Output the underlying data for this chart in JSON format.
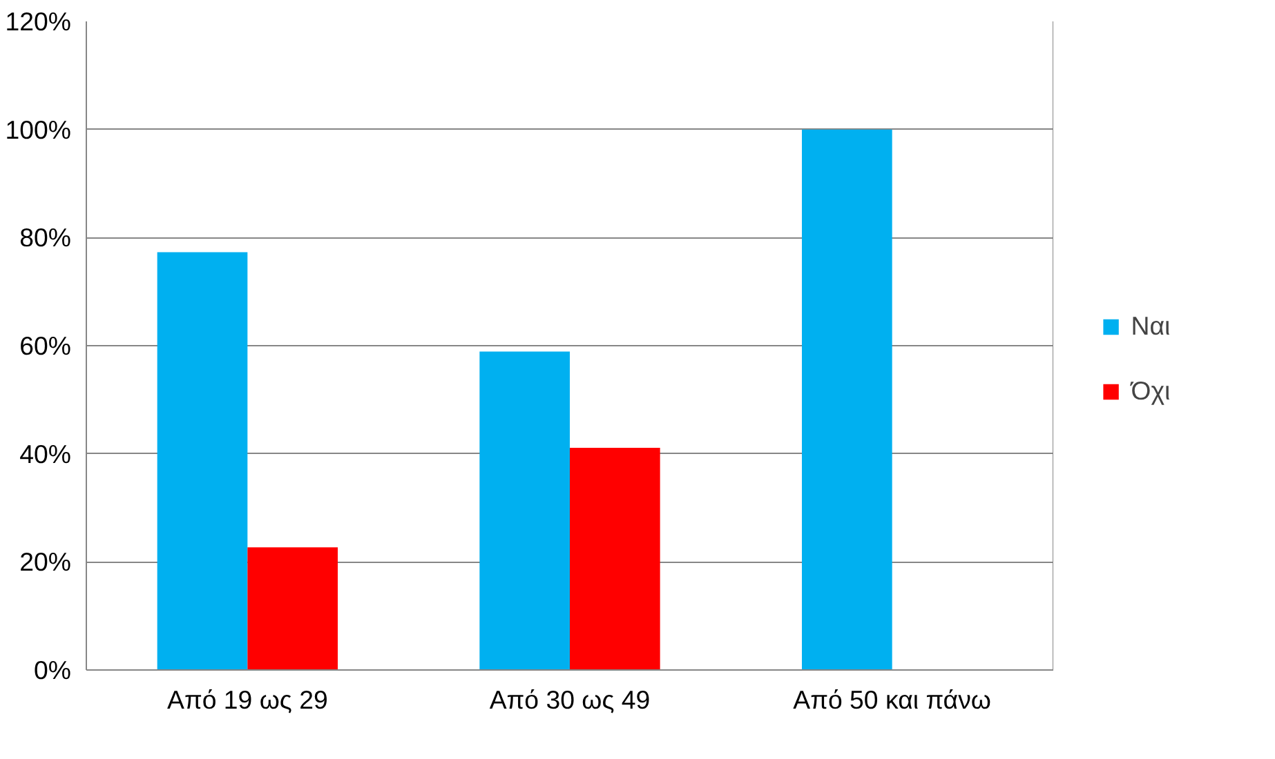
{
  "chart_data": {
    "type": "bar",
    "categories": [
      "Από 19 ως 29",
      "Από 30 ως 49",
      "Από 50 και πάνω"
    ],
    "series": [
      {
        "name": "Ναι",
        "color": "#00b0f0",
        "values": [
          77.3,
          58.9,
          100
        ]
      },
      {
        "name": "Όχι",
        "color": "#ff0000",
        "values": [
          22.7,
          41.1,
          0
        ]
      }
    ],
    "ylim": [
      0,
      120
    ],
    "yticks": [
      {
        "value": 0,
        "label": "0%"
      },
      {
        "value": 20,
        "label": "20%"
      },
      {
        "value": 40,
        "label": "40%"
      },
      {
        "value": 60,
        "label": "60%"
      },
      {
        "value": 80,
        "label": "80%"
      },
      {
        "value": 100,
        "label": "100%"
      },
      {
        "value": 120,
        "label": "120%"
      }
    ],
    "grid": "y",
    "legend": "right"
  }
}
